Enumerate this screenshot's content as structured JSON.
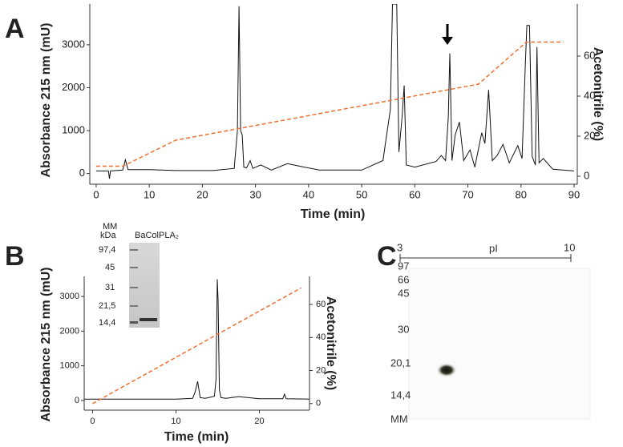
{
  "panel_labels": [
    "A",
    "B",
    "C"
  ],
  "chart_data": [
    {
      "type": "line",
      "xlabel": "Time (min)",
      "ylabel": "Absorbance 215 nm (mU)",
      "y2label": "Acetonitrile (%)",
      "xlim": [
        -1.2,
        90.6
      ],
      "xticks": [
        0,
        10,
        20,
        30,
        40,
        50,
        60,
        70,
        80,
        90
      ],
      "ylim": [
        -250,
        3950
      ],
      "yticks": [
        0,
        1000,
        2000,
        3000
      ],
      "y2lim": [
        -4,
        86
      ],
      "y2ticks": [
        0,
        20,
        40,
        60
      ],
      "series": [
        {
          "color": "#111111",
          "x": [
            0,
            2.3,
            2.5,
            2.7,
            5,
            5.5,
            6,
            10,
            15,
            22,
            26,
            26.6,
            26.9,
            27.2,
            27.5,
            27.8,
            28.3,
            29,
            29.5,
            31,
            33,
            36,
            38,
            42,
            50,
            54,
            55.4,
            55.8,
            56.6,
            57,
            57.6,
            58,
            58.4,
            60,
            64,
            65,
            65.8,
            66.3,
            66.6,
            67,
            67.6,
            68.4,
            69.2,
            70.4,
            71.3,
            72.6,
            73.2,
            73.9,
            74.6,
            75.5,
            76.6,
            77.8,
            79.4,
            80.2,
            80.8,
            81.1,
            81.6,
            82.1,
            82.7,
            83,
            83.4,
            84.2,
            86,
            90
          ],
          "values": [
            60,
            60,
            -120,
            60,
            80,
            320,
            90,
            90,
            70,
            70,
            120,
            1000,
            3900,
            1000,
            900,
            150,
            130,
            300,
            120,
            200,
            80,
            230,
            180,
            80,
            80,
            300,
            1500,
            3950,
            3950,
            500,
            1300,
            2050,
            200,
            150,
            280,
            420,
            300,
            1300,
            2800,
            300,
            900,
            1200,
            300,
            550,
            150,
            950,
            700,
            1950,
            300,
            420,
            680,
            250,
            650,
            350,
            2500,
            3450,
            3450,
            400,
            200,
            2950,
            250,
            350,
            100,
            60
          ]
        },
        {
          "color": "#f07030",
          "axis": "y2",
          "dashed": true,
          "x": [
            0,
            5,
            15,
            72,
            81,
            88
          ],
          "values": [
            5,
            5,
            18,
            46,
            67,
            67
          ]
        }
      ]
    },
    {
      "type": "line",
      "xlabel": "Time (min)",
      "ylabel": "Absorbance 215 nm (mU)",
      "y2label": "Acetonitrile (%)",
      "xlim": [
        -1,
        26
      ],
      "xticks": [
        0,
        10,
        20
      ],
      "ylim": [
        -280,
        3580
      ],
      "yticks": [
        0,
        1000,
        2000,
        3000
      ],
      "y2lim": [
        -4,
        77
      ],
      "y2ticks": [
        0,
        20,
        40,
        60
      ],
      "series": [
        {
          "color": "#111111",
          "x": [
            -1,
            5,
            10,
            12,
            12.3,
            12.6,
            12.9,
            13.5,
            14.6,
            14.8,
            14.95,
            15.05,
            15.2,
            15.4,
            16,
            17.5,
            20,
            22.8,
            23,
            23.2,
            26
          ],
          "values": [
            40,
            40,
            40,
            60,
            250,
            550,
            80,
            60,
            120,
            600,
            3500,
            2900,
            300,
            80,
            60,
            110,
            50,
            50,
            180,
            50,
            40
          ]
        },
        {
          "color": "#f07030",
          "axis": "y2",
          "dashed": true,
          "x": [
            0,
            25
          ],
          "values": [
            0,
            70
          ]
        }
      ]
    }
  ],
  "gel_inset": {
    "mm_label": "MM",
    "unit_label": "kDa",
    "lanes": [
      "BaCol",
      "PLA₂"
    ],
    "markers": [
      "97,4",
      "45",
      "31",
      "21,5",
      "14,4"
    ]
  },
  "panel_c": {
    "pi_start": "3",
    "pi_label": "pI",
    "pi_end": "10",
    "markers": [
      "97",
      "66",
      "45",
      "30",
      "20,1",
      "14,4"
    ],
    "mm_label": "MM"
  }
}
